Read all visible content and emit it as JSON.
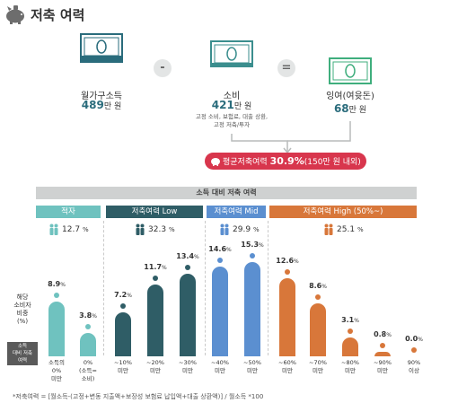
{
  "header": {
    "title": "저축 여력",
    "icon": "piggy-bank-icon"
  },
  "flow": {
    "income": {
      "label": "월가구소득",
      "value": "489",
      "unit": "만 원"
    },
    "spend": {
      "label": "소비",
      "value": "421",
      "unit": "만 원",
      "note": "고정 소비, 보험료, 대출 상환,\n고정 저축/투자"
    },
    "surplus": {
      "label": "잉여(여윳돈)",
      "value": "68",
      "unit": "만 원"
    },
    "minus": "-",
    "equals": "="
  },
  "average": {
    "prefix": "평균저축여력",
    "value": "30.9%",
    "suffix": "(150만 원 내외)"
  },
  "band_title": "소득 대비 저축 여력",
  "categories": [
    {
      "label": "적자",
      "share": "12.7",
      "color": "#6fc2bf"
    },
    {
      "label": "저축여력 Low",
      "share": "32.3",
      "color": "#2f5d66"
    },
    {
      "label": "저축여력 Mid",
      "share": "29.9",
      "color": "#5b8fd0"
    },
    {
      "label": "저축여력 High (50%~)",
      "share": "25.1",
      "color": "#d8773a"
    }
  ],
  "side_label": "해당\n소비자\n비중\n(%)",
  "axis_badge": "소득\n대비 저축\n여력",
  "footnote": "*저축여력 = [월소득-(고정+변동 지출액+보장성 보험료 납입액+대출 상환액)] / 월소득 *100",
  "colors": {
    "accent": "#d8364d",
    "teal": "#2a6c7c"
  },
  "chart_data": {
    "type": "bar",
    "title": "소득 대비 저축 여력",
    "ylabel": "해당 소비자 비중 (%)",
    "categories": [
      "소득의\n0%\n미만",
      "0%\n(소득=\n소비)",
      "~10%\n미만",
      "~20%\n미만",
      "~30%\n미만",
      "~40%\n미만",
      "~50%\n미만",
      "~60%\n미만",
      "~70%\n미만",
      "~80%\n미만",
      "~90%\n미만",
      "90%\n이상"
    ],
    "values": [
      8.9,
      3.8,
      7.2,
      11.7,
      13.4,
      14.6,
      15.3,
      12.6,
      8.6,
      3.1,
      0.8,
      0.0
    ],
    "groups": [
      0,
      0,
      1,
      1,
      1,
      2,
      2,
      3,
      3,
      3,
      3,
      3
    ],
    "ylim": [
      0,
      16
    ]
  }
}
